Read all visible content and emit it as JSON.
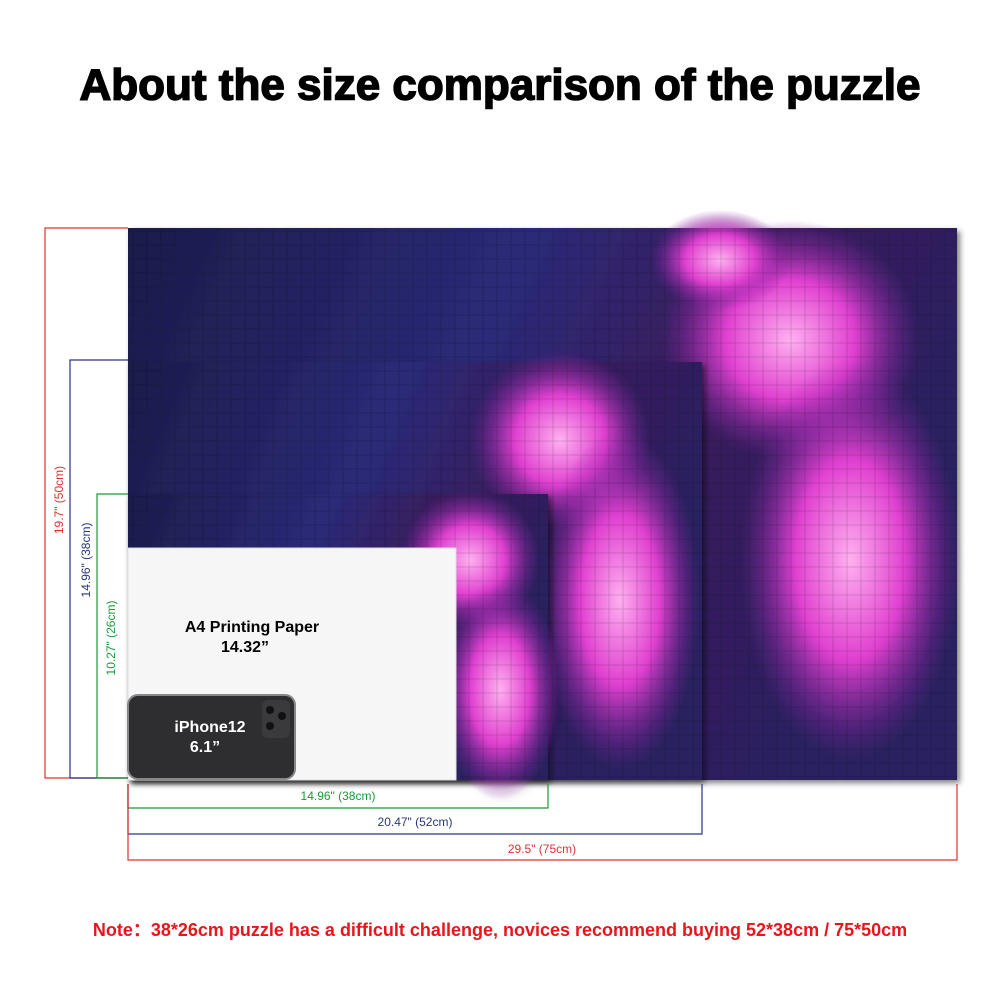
{
  "title": "About the size comparison of the puzzle",
  "puzzles": [
    {
      "width": "29.5\" (75cm)",
      "height": "19.7\" (50cm)"
    },
    {
      "width": "20.47\" (52cm)",
      "height": "14.96\" (38cm)"
    },
    {
      "width": "14.96\" (38cm)",
      "height": "10.27\" (26cm)"
    }
  ],
  "paper": {
    "label": "A4 Printing Paper",
    "size": "14.32”"
  },
  "phone": {
    "label": "iPhone12",
    "size": "6.1”"
  },
  "note": "Note：38*26cm puzzle has a difficult challenge, novices recommend buying 52*38cm / 75*50cm"
}
